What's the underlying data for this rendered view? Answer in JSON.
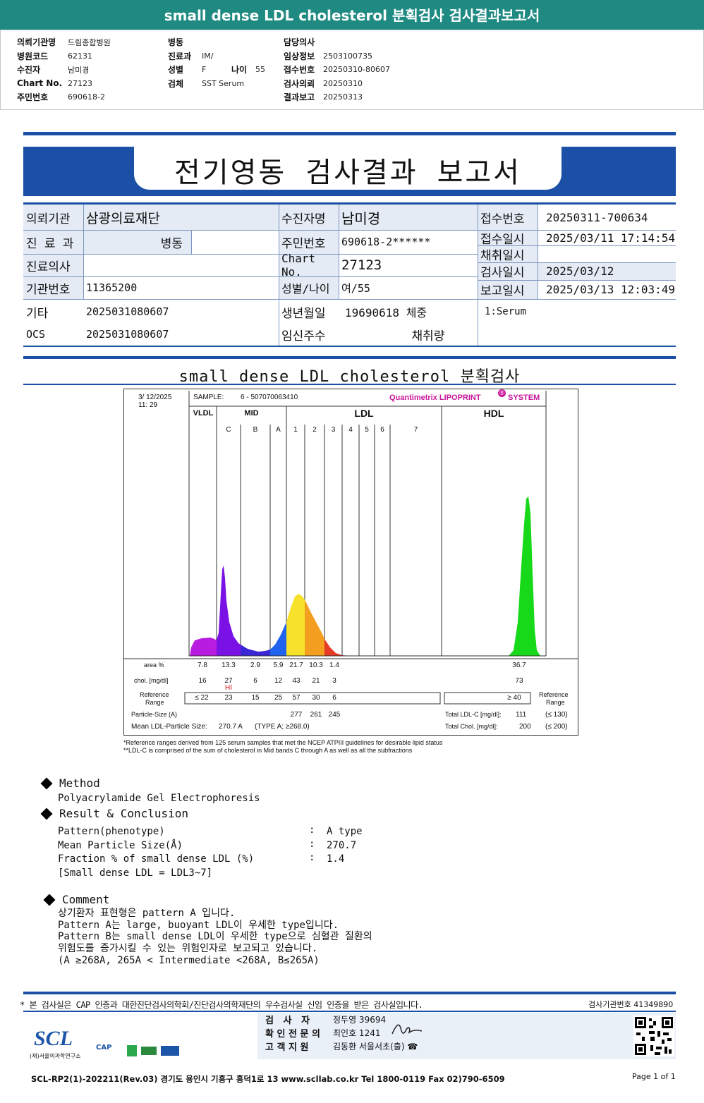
{
  "banner": {
    "title": "small dense LDL cholesterol 분획검사 검사결과보고서"
  },
  "header": {
    "col1": [
      {
        "label": "의뢰기관명",
        "value": "드림종합병원"
      },
      {
        "label": "병원코드",
        "value": "62131"
      },
      {
        "label": "수진자",
        "value": "남미경"
      },
      {
        "label": "Chart No.",
        "value": "27123"
      },
      {
        "label": "주민번호",
        "value": "690618-2"
      }
    ],
    "col2": [
      {
        "label": "병동",
        "value": ""
      },
      {
        "label": "진료과",
        "value": "IM/"
      },
      {
        "label": "성별",
        "value": "F",
        "label2": "나이",
        "value2": "55"
      },
      {
        "label": "검체",
        "value": "SST Serum"
      }
    ],
    "col3": [
      {
        "label": "담당의사",
        "value": ""
      },
      {
        "label": "임상정보",
        "value": "2503100735"
      },
      {
        "label": "접수번호",
        "value": "20250310-80607"
      },
      {
        "label": "검사의뢰",
        "value": "20250310"
      },
      {
        "label": "결과보고",
        "value": "20250313"
      }
    ]
  },
  "report_title": "전기영동 검사결과 보고서",
  "info": {
    "requester_label": "의뢰기관",
    "requester": "삼광의료재단",
    "dept_label": "진 료 과",
    "dept": "병동",
    "doctor_label": "진료의사",
    "doctor": "",
    "inst_label": "기관번호",
    "inst": "11365200",
    "etc_label": "기타",
    "etc": "2025031080607",
    "ocs_label": "OCS",
    "ocs": "2025031080607",
    "patient_label": "수진자명",
    "patient": "남미경",
    "rrn_label": "주민번호",
    "rrn": "690618-2******",
    "chart_label": "Chart No.",
    "chart": "27123",
    "sexage_label": "성별/나이",
    "sexage": "여/55",
    "birth_label": "생년월일",
    "birth": "19690618 체중",
    "preg_label": "임신주수",
    "preg": "채취량",
    "recv_no_label": "접수번호",
    "recv_no": "20250311-700634",
    "recv_dt_label": "접수일시",
    "recv_dt": "2025/03/11 17:14:54",
    "coll_label": "채취일시",
    "coll": "",
    "test_label": "검사일시",
    "test": "2025/03/12",
    "report_label": "보고일시",
    "report": "2025/03/13 12:03:49",
    "specimen": "1:Serum"
  },
  "section_title": "small dense LDL cholesterol 분획검사",
  "chart": {
    "date": "3/ 12/2025",
    "time": "11: 29",
    "sample_label": "SAMPLE:",
    "sample": "6 - 507070063410",
    "brand": "Quantimetrix LIPOPRINT",
    "brand2": "SYSTEM",
    "brand_mark": "®",
    "groups": {
      "vldl": "VLDL",
      "mid": "MID",
      "ldl": "LDL",
      "hdl": "HDL"
    },
    "bands": [
      "C",
      "B",
      "A",
      "1",
      "2",
      "3",
      "4",
      "5",
      "6",
      "7"
    ],
    "area_label": "area %",
    "chol_label": "chol. [mg/dl]",
    "ref_label1": "Reference",
    "ref_label2": "Range",
    "hi_flag": "HI",
    "area_values": [
      "7.8",
      "13.3",
      "2.9",
      "5.9",
      "21.7",
      "10.3",
      "1.4",
      "36.7"
    ],
    "chol_values": [
      "16",
      "27",
      "6",
      "12",
      "43",
      "21",
      "3",
      "73"
    ],
    "ref_values": [
      "≤ 22",
      "23",
      "15",
      "25",
      "57",
      "30",
      "6"
    ],
    "hdl_ref": "≥ 40",
    "particle_label": "Particle-Size (A)",
    "particle_values": [
      "277",
      "261",
      "245"
    ],
    "mean_label": "Mean LDL-Particle Size:",
    "mean_value": "270.7 A",
    "mean_type": "(TYPE A; ≥268.0)",
    "total_ldl_label": "Total LDL-C [mg/dl]:",
    "total_ldl": "111",
    "total_ldl_ref": "(≤ 130)",
    "total_chol_label": "Total Chol. [mg/dl]:",
    "total_chol": "200",
    "total_chol_ref": "(≤ 200)",
    "right_ref1": "Reference",
    "right_ref2": "Range",
    "footnote1": "*Reference ranges derived from 125 serum samples that met the NCEP ATPIII guidelines for desirable lipid status",
    "footnote2": "**LDL-C is comprised of the sum of cholesterol in Mid bands C through A as well as all the subfractions"
  },
  "chart_data": {
    "type": "area",
    "title": "",
    "series": [
      {
        "name": "VLDL",
        "color": "#b81ce0"
      },
      {
        "name": "MID C",
        "color": "#7a12e6"
      },
      {
        "name": "MID B",
        "color": "#3b26d6"
      },
      {
        "name": "MID A",
        "color": "#1f63ee"
      },
      {
        "name": "LDL1",
        "color": "#f7e12a"
      },
      {
        "name": "LDL2",
        "color": "#f39e1f"
      },
      {
        "name": "LDL3",
        "color": "#e63b26"
      },
      {
        "name": "HDL",
        "color": "#17d91a"
      }
    ],
    "fractions": [
      {
        "band": "VLDL",
        "area_pct": 7.8,
        "chol_mgdl": 16,
        "ref": "≤ 22"
      },
      {
        "band": "C",
        "area_pct": 13.3,
        "chol_mgdl": 27,
        "ref": "23",
        "flag": "HI"
      },
      {
        "band": "B",
        "area_pct": 2.9,
        "chol_mgdl": 6,
        "ref": "15"
      },
      {
        "band": "A",
        "area_pct": 5.9,
        "chol_mgdl": 12,
        "ref": "25"
      },
      {
        "band": "1",
        "area_pct": 21.7,
        "chol_mgdl": 43,
        "ref": "57",
        "particle_size": 277
      },
      {
        "band": "2",
        "area_pct": 10.3,
        "chol_mgdl": 21,
        "ref": "30",
        "particle_size": 261
      },
      {
        "band": "3",
        "area_pct": 1.4,
        "chol_mgdl": 3,
        "ref": "6",
        "particle_size": 245
      },
      {
        "band": "HDL",
        "area_pct": 36.7,
        "chol_mgdl": 73,
        "ref": "≥ 40"
      }
    ]
  },
  "method": {
    "heading": "Method",
    "text": "Polyacrylamide Gel Electrophoresis"
  },
  "result": {
    "heading": "Result & Conclusion",
    "rows": [
      {
        "label": "Pattern(phenotype)",
        "value": "A type"
      },
      {
        "label": "Mean Particle Size(Å)",
        "value": "270.7"
      },
      {
        "label": "Fraction % of small dense LDL (%)",
        "value": "1.4"
      }
    ],
    "colon": ":",
    "note": "[Small dense LDL = LDL3~7]"
  },
  "comment": {
    "heading": "Comment",
    "lines": [
      "상기환자 표현형은 pattern A 입니다.",
      "Pattern A는 large, buoyant LDL이 우세한 type입니다.",
      "Pattern B는 small dense LDL이 우세한 type으로 심혈관 질환의",
      "위험도를 증가시킬 수 있는 위험인자로 보고되고 있습니다.",
      "(A ≥268A, 265A < Intermediate <268A, B≤265A)"
    ]
  },
  "footer": {
    "cert_text": "* 본 검사실은 CAP 인증과 대한진단검사의학회/진단검사의학재단의 우수검사실 신임 인증을 받은 검사실입니다.",
    "inst_no": "검사기관번호  41349890",
    "examiner_label": "검   사   자",
    "examiner": "정두영 39694",
    "confirm_label": "확 인 전 문 의",
    "confirm": "최인호 1241",
    "support_label": "고 객 지 원",
    "support": "김동환 서울서초(출) ☎",
    "logo": "SCL",
    "logo_sub": "(재)서울의과학연구소",
    "cap": "CAP",
    "address": "SCL-RP2(1)-202211(Rev.03)  경기도 용인시 기흥구 흥덕1로 13  www.scllab.co.kr  Tel 1800-0119   Fax 02)790-6509",
    "page": "Page 1 of 1"
  }
}
